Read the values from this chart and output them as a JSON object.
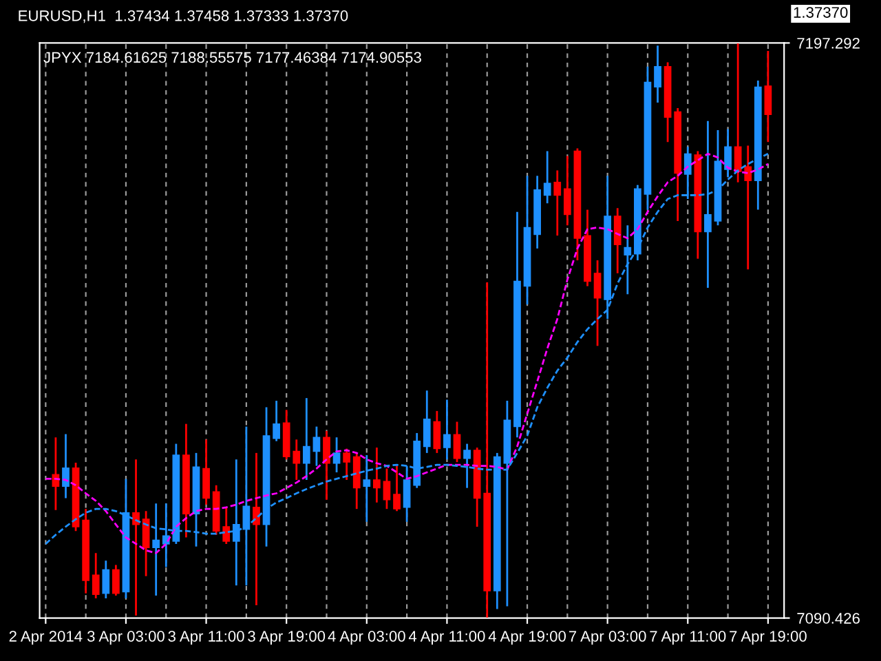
{
  "chart_data": {
    "type": "candlestick",
    "title": "JPYX 7184.61625 7188.55575 7177.46384 7174.90553",
    "annotations": [
      "EURUSD,H1  1.37434 1.37458 1.37333 1.37370",
      "1.37370"
    ],
    "categories": [
      "2 Apr 2014",
      null,
      null,
      null,
      null,
      null,
      null,
      null,
      "3 Apr 03:00",
      null,
      null,
      null,
      null,
      null,
      null,
      null,
      "3 Apr 11:00",
      null,
      null,
      null,
      null,
      null,
      null,
      null,
      "3 Apr 19:00",
      null,
      null,
      null,
      null,
      null,
      null,
      null,
      "4 Apr 03:00",
      null,
      null,
      null,
      null,
      null,
      null,
      null,
      "4 Apr 11:00",
      null,
      null,
      null,
      null,
      null,
      null,
      null,
      "4 Apr 19:00",
      null,
      null,
      null,
      null,
      null,
      null,
      null,
      "7 Apr 03:00",
      null,
      null,
      null,
      null,
      null,
      null,
      null,
      "7 Apr 11:00",
      null,
      null,
      null,
      null,
      null,
      null,
      null,
      "7 Apr 19:00"
    ],
    "ohlc": [
      null,
      [
        7117.1,
        7124.0,
        7110.5,
        7114.9
      ],
      [
        7114.9,
        7124.6,
        7112.7,
        7118.3
      ],
      [
        7118.3,
        7119.3,
        7106.6,
        7107.4
      ],
      [
        7108.6,
        7110.7,
        7095.0,
        7097.4
      ],
      [
        7098.4,
        7102.5,
        7094.1,
        7094.8
      ],
      [
        7095.0,
        7101.1,
        7094.1,
        7099.4
      ],
      [
        7099.4,
        7100.3,
        7094.6,
        7095.0
      ],
      [
        7095.3,
        7116.3,
        7094.1,
        7110.0
      ],
      [
        7110.0,
        7119.9,
        7090.9,
        7107.8
      ],
      [
        7108.8,
        7110.3,
        7098.2,
        7103.5
      ],
      [
        7103.5,
        7111.7,
        7094.6,
        7104.9
      ],
      [
        7104.2,
        7111.7,
        7099.9,
        7105.7
      ],
      [
        7104.7,
        7122.8,
        7104.2,
        7120.7
      ],
      [
        7120.7,
        7126.5,
        7105.4,
        7109.8
      ],
      [
        7109.8,
        7121.1,
        7103.7,
        7118.5
      ],
      [
        7118.2,
        7123.6,
        7111.5,
        7112.7
      ],
      [
        7113.9,
        7115.1,
        7105.9,
        7106.6
      ],
      [
        7107.4,
        7111.0,
        7104.2,
        7104.7
      ],
      [
        7104.7,
        7119.9,
        7096.5,
        7107.8
      ],
      [
        7106.9,
        7126.0,
        7096.5,
        7111.2
      ],
      [
        7111.0,
        7121.1,
        7092.8,
        7107.8
      ],
      [
        7107.8,
        7129.6,
        7103.7,
        7124.3
      ],
      [
        7123.8,
        7130.8,
        7123.3,
        7126.5
      ],
      [
        7126.7,
        7129.1,
        7119.9,
        7120.4
      ],
      [
        7121.4,
        7123.6,
        7116.1,
        7119.2
      ],
      [
        7119.2,
        7131.3,
        7116.1,
        7122.3
      ],
      [
        7121.4,
        7126.0,
        7118.7,
        7124.0
      ],
      [
        7124.0,
        7125.2,
        7112.4,
        7119.2
      ],
      [
        7119.2,
        7124.0,
        7117.5,
        7121.1
      ],
      [
        7121.1,
        7121.9,
        7116.1,
        7119.4
      ],
      [
        7120.4,
        7121.1,
        7110.7,
        7114.6
      ],
      [
        7114.9,
        7120.7,
        7108.3,
        7116.1
      ],
      [
        7116.1,
        7122.1,
        7111.9,
        7114.6
      ],
      [
        7115.8,
        7118.2,
        7110.7,
        7112.4
      ],
      [
        7113.4,
        7118.7,
        7110.3,
        7110.7
      ],
      [
        7111.0,
        7118.7,
        7108.3,
        7116.1
      ],
      [
        7115.1,
        7124.8,
        7114.6,
        7123.3
      ],
      [
        7122.3,
        7132.7,
        7121.1,
        7127.4
      ],
      [
        7126.9,
        7128.9,
        7121.1,
        7121.9
      ],
      [
        7122.1,
        7131.0,
        7119.9,
        7124.5
      ],
      [
        7124.5,
        7126.9,
        7119.4,
        7120.1
      ],
      [
        7120.1,
        7122.8,
        7114.6,
        7121.6
      ],
      [
        7121.6,
        7122.1,
        7107.4,
        7112.7
      ],
      [
        7113.6,
        7152.8,
        7090.5,
        7095.5
      ],
      [
        7095.5,
        7121.1,
        7092.1,
        7120.4
      ],
      [
        7119.2,
        7130.8,
        7092.6,
        7127.2
      ],
      [
        7126.0,
        7165.9,
        7124.0,
        7153.0
      ],
      [
        7152.1,
        7172.6,
        7148.7,
        7163.0
      ],
      [
        7161.7,
        7172.6,
        7159.1,
        7170.0
      ],
      [
        7169.0,
        7177.2,
        7167.5,
        7171.2
      ],
      [
        7171.4,
        7173.6,
        7161.5,
        7169.0
      ],
      [
        7170.2,
        7176.3,
        7163.4,
        7165.4
      ],
      [
        7177.2,
        7177.7,
        7156.9,
        7161.0
      ],
      [
        7161.5,
        7166.3,
        7152.1,
        7153.0
      ],
      [
        7154.5,
        7156.9,
        7141.0,
        7149.9
      ],
      [
        7149.6,
        7172.6,
        7146.0,
        7165.1
      ],
      [
        7165.1,
        7166.6,
        7154.5,
        7159.8
      ],
      [
        7157.9,
        7163.4,
        7150.6,
        7159.3
      ],
      [
        7158.1,
        7170.9,
        7156.9,
        7170.2
      ],
      [
        7169.2,
        7192.9,
        7166.3,
        7190.0
      ],
      [
        7189.1,
        7196.8,
        7186.2,
        7192.9
      ],
      [
        7192.9,
        7193.7,
        7178.9,
        7183.5
      ],
      [
        7184.5,
        7185.2,
        7164.2,
        7173.1
      ],
      [
        7172.9,
        7178.0,
        7168.3,
        7176.7
      ],
      [
        7176.5,
        7177.2,
        7157.2,
        7162.2
      ],
      [
        7162.2,
        7182.8,
        7151.8,
        7165.4
      ],
      [
        7164.2,
        7181.1,
        7163.4,
        7175.3
      ],
      [
        7173.8,
        7181.3,
        7172.4,
        7178.0
      ],
      [
        7178.0,
        7197.2,
        7171.4,
        7173.4
      ],
      [
        7174.3,
        7178.2,
        7155.2,
        7171.7
      ],
      [
        7171.7,
        7190.3,
        7166.3,
        7189.1
      ],
      [
        7189.3,
        7195.8,
        7178.9,
        7184.0
      ]
    ],
    "colors": [
      null,
      "#ff0000",
      "#1e90ff",
      "#ff0000",
      "#ff0000",
      "#ff0000",
      "#1e90ff",
      "#ff0000",
      "#1e90ff",
      "#ff0000",
      "#ff0000",
      "#1e90ff",
      "#1e90ff",
      "#1e90ff",
      "#ff0000",
      "#1e90ff",
      "#ff0000",
      "#ff0000",
      "#ff0000",
      "#1e90ff",
      "#1e90ff",
      "#ff0000",
      "#1e90ff",
      "#1e90ff",
      "#ff0000",
      "#ff0000",
      "#1e90ff",
      "#1e90ff",
      "#ff0000",
      "#1e90ff",
      "#ff0000",
      "#ff0000",
      "#1e90ff",
      "#ff0000",
      "#ff0000",
      "#ff0000",
      "#1e90ff",
      "#1e90ff",
      "#1e90ff",
      "#ff0000",
      "#1e90ff",
      "#ff0000",
      "#1e90ff",
      "#ff0000",
      "#ff0000",
      "#1e90ff",
      "#1e90ff",
      "#1e90ff",
      "#1e90ff",
      "#1e90ff",
      "#1e90ff",
      "#ff0000",
      "#ff0000",
      "#ff0000",
      "#ff0000",
      "#ff0000",
      "#1e90ff",
      "#ff0000",
      "#1e90ff",
      "#1e90ff",
      "#1e90ff",
      "#1e90ff",
      "#ff0000",
      "#ff0000",
      "#1e90ff",
      "#ff0000",
      "#1e90ff",
      "#1e90ff",
      "#1e90ff",
      "#ff0000",
      "#ff0000",
      "#1e90ff",
      "#ff0000"
    ],
    "series": [
      {
        "type": "line",
        "color": "#ff00ff",
        "line_style": "dashed",
        "values": [
          7116.3,
          7116.3,
          7116.1,
          7115.1,
          7113.6,
          7112.2,
          7110.3,
          7107.8,
          7105.4,
          7104.2,
          7103.0,
          7102.5,
          7104.2,
          7107.4,
          7109.0,
          7110.3,
          7110.7,
          7110.7,
          7111.0,
          7111.5,
          7112.2,
          7112.7,
          7113.2,
          7113.6,
          7114.6,
          7115.6,
          7116.8,
          7118.2,
          7119.9,
          7121.4,
          7121.6,
          7121.1,
          7119.9,
          7119.2,
          7118.7,
          7117.5,
          7116.3,
          7116.8,
          7117.5,
          7118.2,
          7118.9,
          7118.9,
          7118.9,
          7118.7,
          7118.7,
          7118.5,
          7118.0,
          7122.3,
          7128.4,
          7134.4,
          7140.5,
          7146.0,
          7153.3,
          7159.1,
          7162.7,
          7163.0,
          7162.7,
          7161.8,
          7161.0,
          7162.7,
          7165.9,
          7168.8,
          7171.4,
          7172.6,
          7174.3,
          7175.5,
          7176.7,
          7176.0,
          7174.1,
          7173.4,
          7173.1,
          7173.8,
          7174.8
        ]
      },
      {
        "type": "line",
        "color": "#1e90ff",
        "line_style": "dashed",
        "values": [
          7104.2,
          7105.9,
          7107.4,
          7108.8,
          7110.0,
          7110.7,
          7110.7,
          7110.3,
          7109.5,
          7108.6,
          7107.8,
          7107.1,
          7106.9,
          7106.6,
          7106.6,
          7106.4,
          7106.1,
          7106.1,
          7106.4,
          7106.6,
          7107.4,
          7109.0,
          7110.7,
          7111.9,
          7112.7,
          7113.6,
          7114.4,
          7115.1,
          7115.8,
          7116.3,
          7116.8,
          7117.3,
          7117.8,
          7118.2,
          7118.7,
          7118.9,
          7118.7,
          7118.2,
          7118.5,
          7118.9,
          7118.9,
          7118.7,
          7118.5,
          7118.2,
          7118.0,
          7118.0,
          7118.0,
          7121.1,
          7124.3,
          7129.6,
          7133.2,
          7136.4,
          7138.8,
          7141.7,
          7144.1,
          7146.0,
          7147.7,
          7152.6,
          7156.2,
          7159.1,
          7163.0,
          7165.9,
          7168.3,
          7169.0,
          7169.0,
          7169.0,
          7169.2,
          7170.0,
          7171.9,
          7173.6,
          7174.8,
          7175.8,
          7176.7
        ]
      }
    ],
    "ylim": [
      7090.426,
      7197.292
    ],
    "yticks": [
      7197.292,
      7090.426
    ],
    "grid": "x",
    "legend": false
  }
}
